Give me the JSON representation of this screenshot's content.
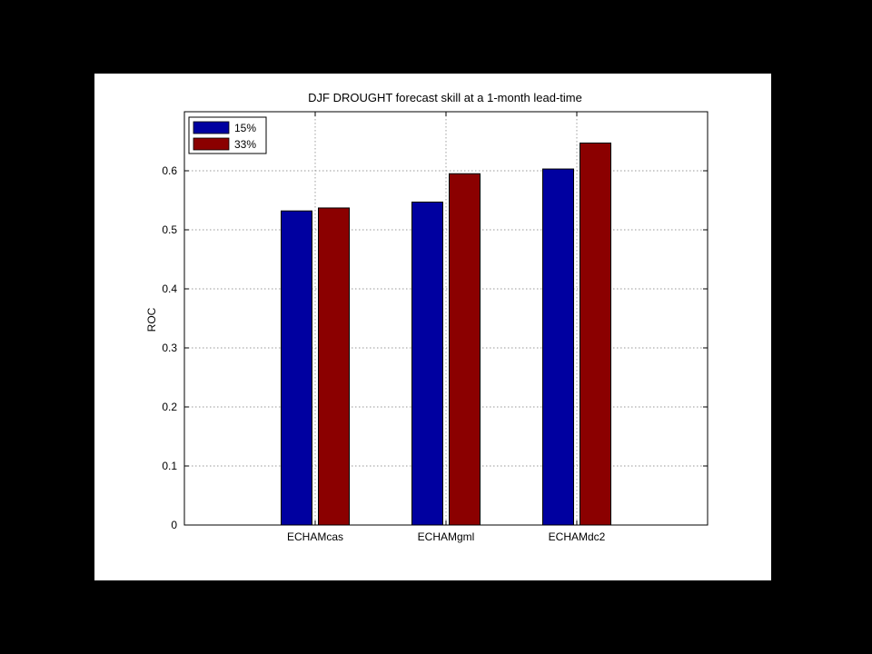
{
  "chart_data": {
    "type": "bar",
    "title": "DJF DROUGHT forecast skill at a 1-month lead-time",
    "xlabel": "",
    "ylabel": "ROC",
    "categories": [
      "ECHAMcas",
      "ECHAMgml",
      "ECHAMdc2"
    ],
    "series": [
      {
        "name": "15%",
        "color": "#0000a0",
        "values": [
          0.532,
          0.547,
          0.603
        ]
      },
      {
        "name": "33%",
        "color": "#8b0000",
        "values": [
          0.537,
          0.595,
          0.647
        ]
      }
    ],
    "ylim": [
      0,
      0.7
    ],
    "xlim": [
      0,
      4
    ],
    "yticks": [
      0,
      0.1,
      0.2,
      0.3,
      0.4,
      0.5,
      0.6
    ],
    "ytick_labels": [
      "0",
      "0.1",
      "0.2",
      "0.3",
      "0.4",
      "0.5",
      "0.6"
    ],
    "grid": true,
    "legend_position": "top-left"
  }
}
